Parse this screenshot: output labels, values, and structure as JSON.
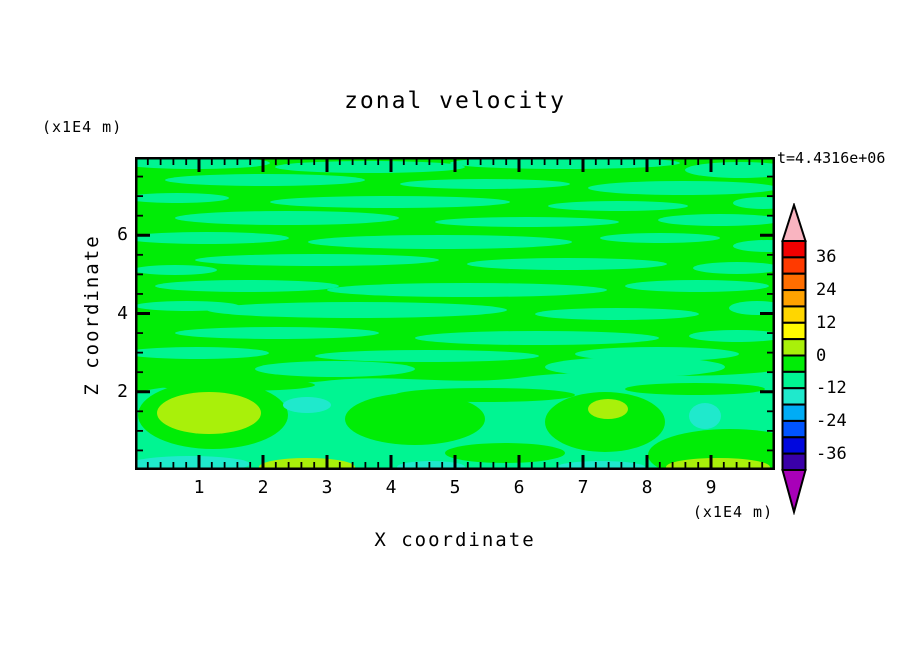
{
  "title": "zonal velocity",
  "timestamp": "t=4.4316e+06",
  "y_unit_label": "(x1E4 m)",
  "x_unit_label": "(x1E4 m)",
  "axes": {
    "x": {
      "title": "X coordinate"
    },
    "y": {
      "title": "Z coordinate"
    }
  },
  "colorbar": {
    "tick_labels": [
      "36",
      "24",
      "12",
      "0",
      "-12",
      "-24",
      "-36"
    ],
    "segment_colors_top_to_bottom": [
      "#F10000",
      "#FF3A00",
      "#FF6E00",
      "#FFA200",
      "#FFD600",
      "#FFFA00",
      "#A9F00A",
      "#00ED06",
      "#00F592",
      "#1FE9CC",
      "#00ACF5",
      "#0054FF",
      "#0007DE",
      "#3A00A8"
    ],
    "arrow_top_color": "#F9B4C0",
    "arrow_bottom_color": "#A800B8"
  },
  "chart_data": {
    "type": "contour",
    "title": "zonal velocity",
    "xlabel": "X coordinate",
    "ylabel": "Z coordinate",
    "x_unit": "(x1E4 m)",
    "y_unit": "(x1E4 m)",
    "time_annotation": "t=4.4316e+06",
    "axes": {
      "x": {
        "min": 0,
        "max": 10,
        "major_step": 1,
        "minor_step": 0.2,
        "labels": [
          1,
          2,
          3,
          4,
          5,
          6,
          7,
          8,
          9
        ]
      },
      "y": {
        "min": 0,
        "max": 8,
        "major_step": 2,
        "minor_step": 0.5,
        "labels": [
          2,
          4,
          6
        ]
      }
    },
    "contour_levels": [
      -42,
      -36,
      -30,
      -24,
      -18,
      -12,
      -6,
      0,
      6,
      12,
      18,
      24,
      30,
      36,
      42
    ],
    "colorbar_tick_values": [
      36,
      24,
      12,
      0,
      -12,
      -24,
      -36
    ],
    "level_colors_high_to_low": [
      "#F10000",
      "#FF3A00",
      "#FF6E00",
      "#FFA200",
      "#FFD600",
      "#FFFA00",
      "#A9F00A",
      "#00ED06",
      "#00F592",
      "#1FE9CC",
      "#00ACF5",
      "#0054FF",
      "#0007DE",
      "#3A00A8"
    ],
    "field_description": "Horizontally streaky zonal-velocity field, values mostly between -12 and 6: alternating green (-6..0) and spring-green (-12..-6) bands throughout; lower quarter (z<2) dominated by spring green with yellow-green positive patches (0..12) near the bottom boundary around x=1.0-1.7, x=2.2-3.4, x=7.1-7.7 and x=8.5-9.8, and cyan negative patches (-18..-12) around x=2.3-3.0, x=8.7-9.2 and along the bottom edge near x=0.1-1.9, x=4.1-5.2, x=6.7-8.0"
  }
}
